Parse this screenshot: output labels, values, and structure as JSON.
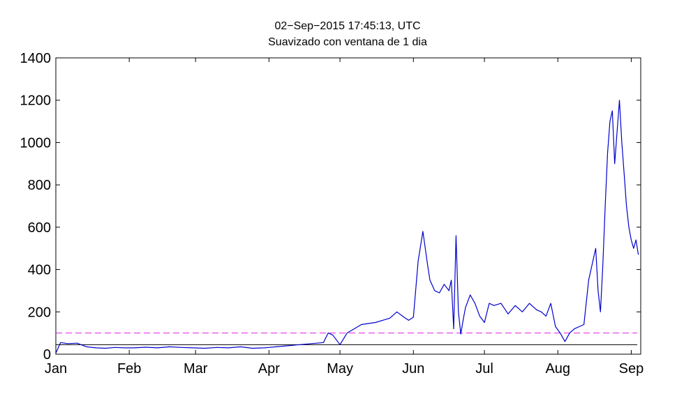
{
  "chart_data": {
    "type": "line",
    "title": "02−Sep−2015 17:45:13, UTC",
    "subtitle": "Suavizado con ventana de 1 dia",
    "xlabel": "",
    "ylabel": "",
    "ylim": [
      0,
      1400
    ],
    "xlim": [
      "2015-01-01",
      "2015-09-05"
    ],
    "grid": false,
    "legend": "none",
    "x_ticks": [
      {
        "date": "2015-01-01",
        "label": "Jan"
      },
      {
        "date": "2015-02-01",
        "label": "Feb"
      },
      {
        "date": "2015-03-01",
        "label": "Mar"
      },
      {
        "date": "2015-04-01",
        "label": "Apr"
      },
      {
        "date": "2015-05-01",
        "label": "May"
      },
      {
        "date": "2015-06-01",
        "label": "Jun"
      },
      {
        "date": "2015-07-01",
        "label": "Jul"
      },
      {
        "date": "2015-08-01",
        "label": "Aug"
      },
      {
        "date": "2015-09-01",
        "label": "Sep"
      }
    ],
    "y_ticks": [
      0,
      200,
      400,
      600,
      800,
      1000,
      1200,
      1400
    ],
    "reference_lines": [
      {
        "y": 100,
        "color": "#e020e0",
        "style": "dashed"
      },
      {
        "y": 45,
        "color": "#000000",
        "style": "solid"
      }
    ],
    "series": [
      {
        "color": "#0000cc",
        "x": [
          "2015-01-01",
          "2015-01-03",
          "2015-01-06",
          "2015-01-10",
          "2015-01-14",
          "2015-01-18",
          "2015-01-22",
          "2015-01-26",
          "2015-01-30",
          "2015-02-03",
          "2015-02-08",
          "2015-02-13",
          "2015-02-18",
          "2015-02-23",
          "2015-02-28",
          "2015-03-05",
          "2015-03-10",
          "2015-03-15",
          "2015-03-20",
          "2015-03-25",
          "2015-03-30",
          "2015-04-04",
          "2015-04-09",
          "2015-04-14",
          "2015-04-19",
          "2015-04-24",
          "2015-04-26",
          "2015-04-28",
          "2015-05-01",
          "2015-05-04",
          "2015-05-07",
          "2015-05-10",
          "2015-05-13",
          "2015-05-16",
          "2015-05-19",
          "2015-05-22",
          "2015-05-25",
          "2015-05-28",
          "2015-05-30",
          "2015-06-01",
          "2015-06-03",
          "2015-06-05",
          "2015-06-06",
          "2015-06-07",
          "2015-06-08",
          "2015-06-10",
          "2015-06-12",
          "2015-06-14",
          "2015-06-16",
          "2015-06-17",
          "2015-06-18",
          "2015-06-19",
          "2015-06-20",
          "2015-06-21",
          "2015-06-22",
          "2015-06-23",
          "2015-06-25",
          "2015-06-27",
          "2015-06-29",
          "2015-07-01",
          "2015-07-03",
          "2015-07-05",
          "2015-07-08",
          "2015-07-11",
          "2015-07-14",
          "2015-07-17",
          "2015-07-20",
          "2015-07-23",
          "2015-07-25",
          "2015-07-27",
          "2015-07-29",
          "2015-07-31",
          "2015-08-02",
          "2015-08-04",
          "2015-08-06",
          "2015-08-08",
          "2015-08-10",
          "2015-08-12",
          "2015-08-14",
          "2015-08-16",
          "2015-08-17",
          "2015-08-18",
          "2015-08-19",
          "2015-08-20",
          "2015-08-21",
          "2015-08-22",
          "2015-08-23",
          "2015-08-24",
          "2015-08-25",
          "2015-08-26",
          "2015-08-27",
          "2015-08-28",
          "2015-08-29",
          "2015-08-30",
          "2015-08-31",
          "2015-09-01",
          "2015-09-02",
          "2015-09-03",
          "2015-09-04"
        ],
        "y": [
          5,
          55,
          50,
          52,
          35,
          30,
          28,
          32,
          30,
          30,
          33,
          30,
          35,
          32,
          30,
          28,
          32,
          30,
          35,
          28,
          30,
          35,
          40,
          45,
          50,
          55,
          100,
          90,
          45,
          100,
          120,
          140,
          145,
          150,
          160,
          170,
          200,
          175,
          160,
          175,
          440,
          580,
          500,
          420,
          350,
          300,
          290,
          330,
          300,
          350,
          120,
          560,
          200,
          95,
          160,
          220,
          280,
          240,
          180,
          150,
          240,
          230,
          240,
          190,
          230,
          200,
          240,
          210,
          200,
          180,
          240,
          130,
          100,
          60,
          100,
          120,
          130,
          140,
          350,
          450,
          500,
          300,
          200,
          420,
          700,
          950,
          1100,
          1150,
          900,
          1050,
          1200,
          1000,
          850,
          700,
          600,
          540,
          500,
          540,
          470
        ]
      }
    ]
  }
}
